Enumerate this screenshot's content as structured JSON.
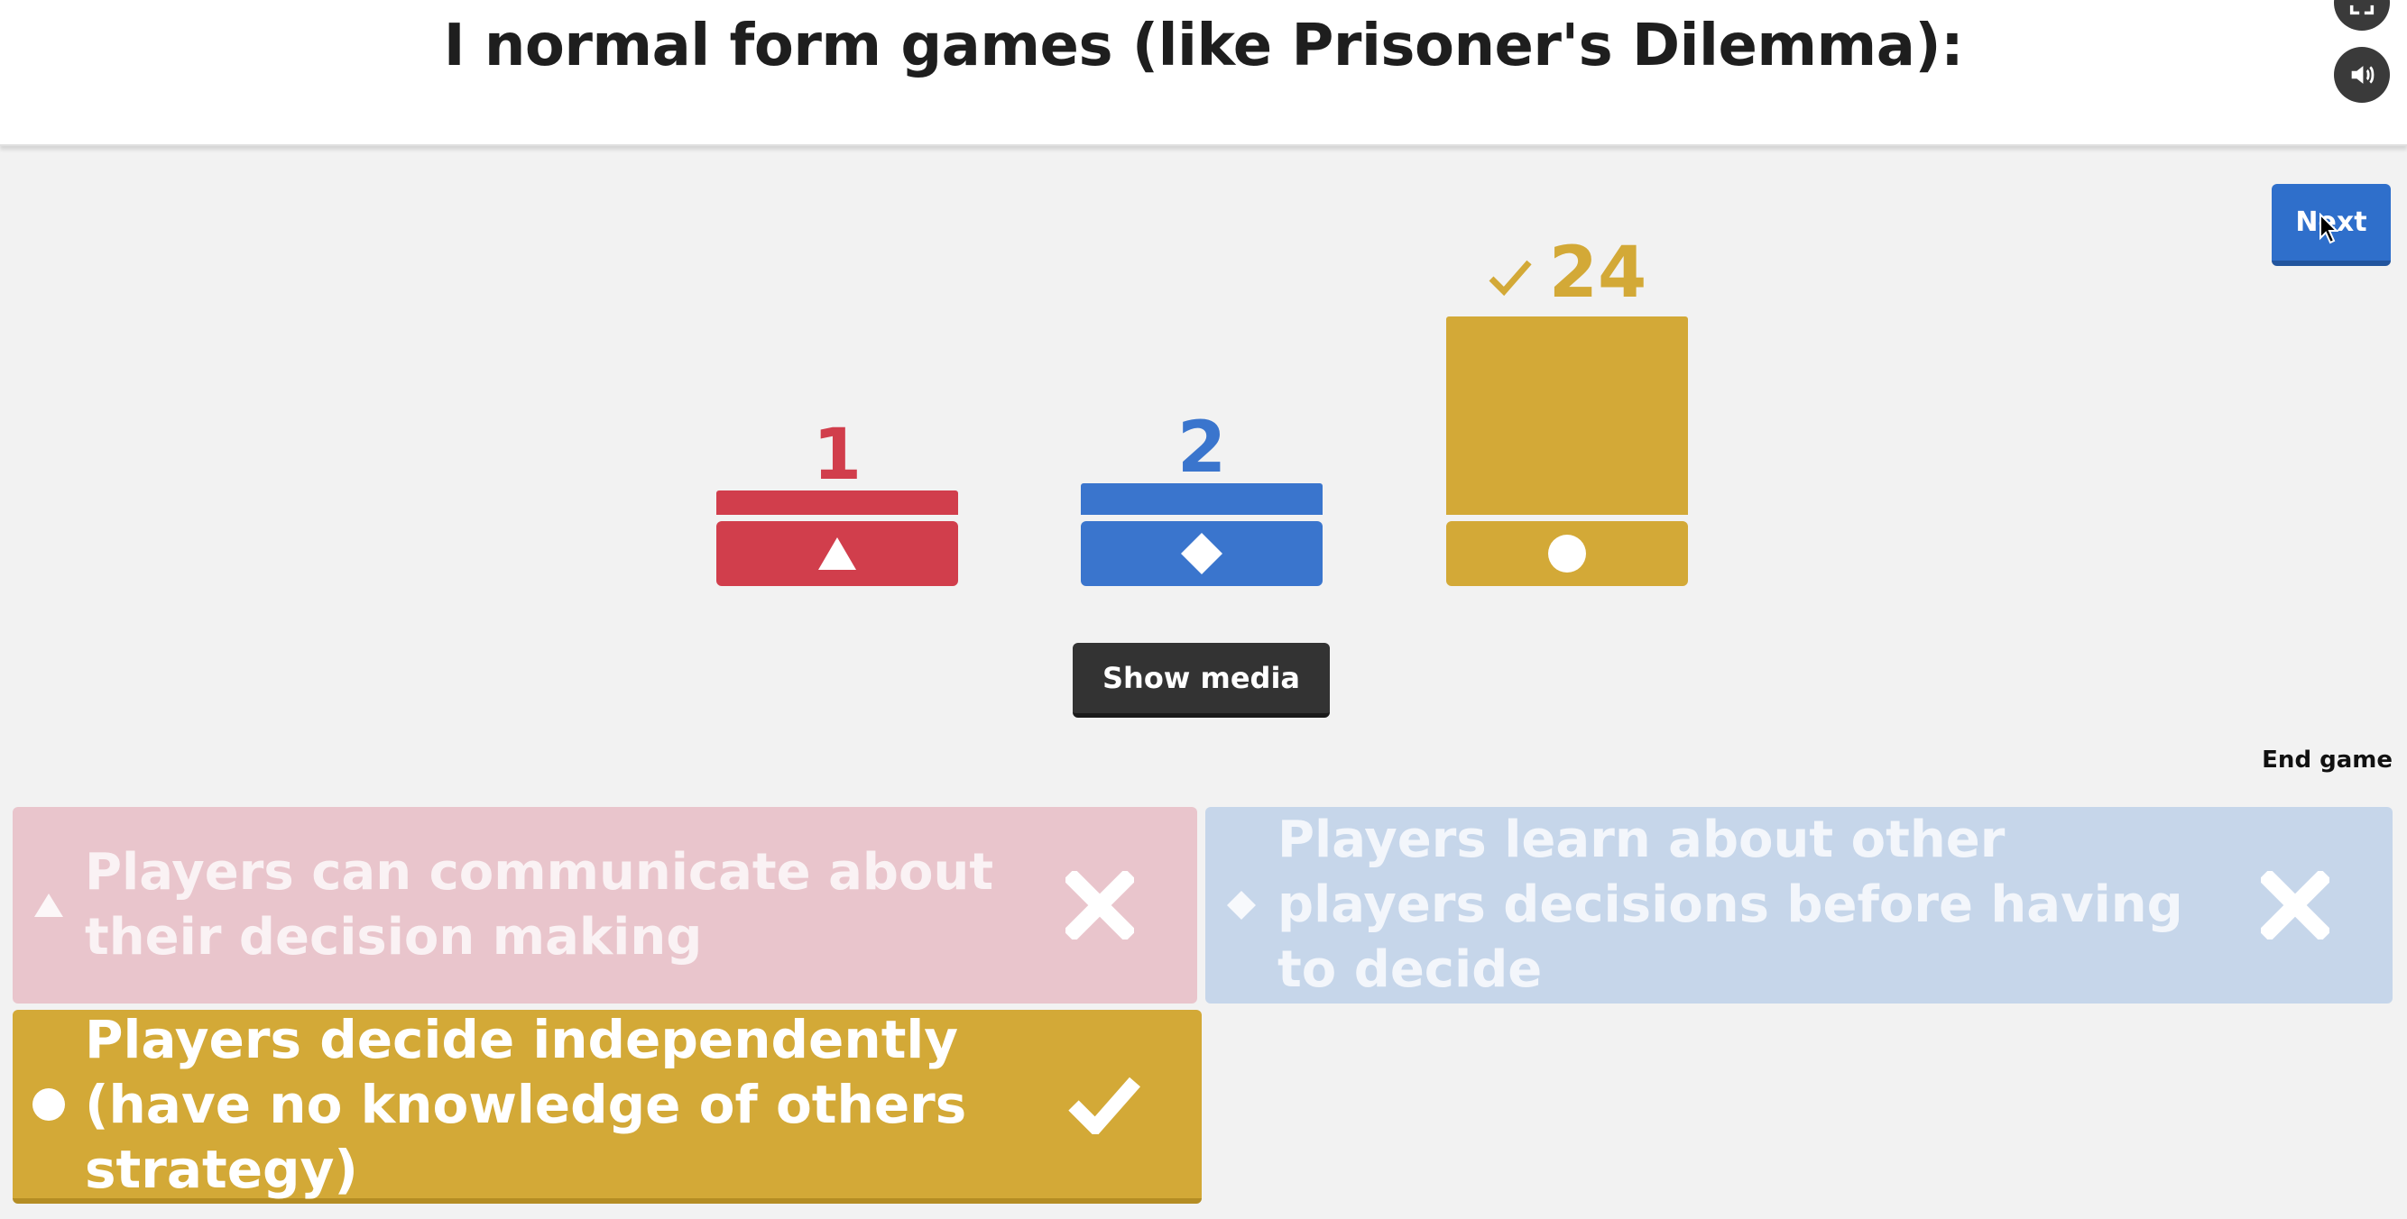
{
  "header": {
    "question": "I normal form games (like Prisoner's Dilemma):",
    "fullscreen_icon": "fullscreen-icon",
    "sound_icon": "speaker-icon"
  },
  "controls": {
    "next_label": "Next",
    "show_media_label": "Show media",
    "end_game_label": "End game"
  },
  "results": [
    {
      "shape": "triangle",
      "color": "#d13e4c",
      "count": "1",
      "correct": false
    },
    {
      "shape": "diamond",
      "color": "#3a75cd",
      "count": "2",
      "correct": false
    },
    {
      "shape": "circle",
      "color": "#d3a937",
      "count": "24",
      "correct": true
    }
  ],
  "answers": [
    {
      "shape": "triangle",
      "text": "Players can communicate about their decision making",
      "result": "incorrect",
      "color": "#e9c5cc"
    },
    {
      "shape": "diamond",
      "text": "Players learn about other players decisions before having to decide",
      "result": "incorrect",
      "color": "#c6d6ea"
    },
    {
      "shape": "circle",
      "text": "Players decide independently (have no knowledge of others strategy)",
      "result": "correct",
      "color": "#d3a937"
    }
  ]
}
